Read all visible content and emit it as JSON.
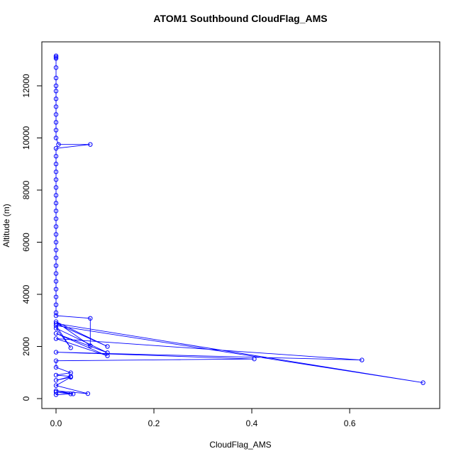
{
  "chart_data": {
    "type": "line",
    "title": "ATOM1 Southbound CloudFlag_AMS",
    "xlabel": "CloudFlag_AMS",
    "ylabel": "Altitude (m)",
    "color": "#0000ff",
    "markers": true,
    "xlim": [
      -0.029,
      0.784
    ],
    "ylim": [
      -381,
      13687
    ],
    "xticks": [
      {
        "value": 0,
        "label": "0.0"
      },
      0.2,
      0.4,
      0.6
    ],
    "yticks": [
      0,
      2000,
      4000,
      6000,
      8000,
      10000,
      12000
    ],
    "x": [
      0,
      0,
      0,
      0,
      0,
      0,
      0,
      0,
      0,
      0,
      0,
      0,
      0,
      0.005,
      0.07,
      0,
      0,
      0,
      0,
      0,
      0,
      0,
      0,
      0,
      0,
      0,
      0,
      0,
      0,
      0,
      0,
      0,
      0,
      0,
      0,
      0,
      0,
      0,
      0.07,
      0.07,
      0,
      0.105,
      0,
      0.75,
      0,
      0.03,
      0,
      0.105,
      0,
      0.105,
      0,
      0.625,
      0,
      0.405,
      0,
      0,
      0.03,
      0,
      0.03,
      0,
      0.03,
      0,
      0.065,
      0,
      0.035,
      0,
      0.03,
      0
    ],
    "values": [
      13150,
      13100,
      13050,
      12700,
      12300,
      12000,
      11800,
      11500,
      11200,
      10900,
      10600,
      10300,
      10000,
      9750,
      9750,
      9600,
      9300,
      9000,
      8700,
      8400,
      8100,
      7800,
      7500,
      7200,
      6900,
      6600,
      6300,
      6000,
      5700,
      5400,
      5100,
      4800,
      4500,
      4200,
      3900,
      3600,
      3300,
      3180,
      3080,
      2030,
      2950,
      2000,
      2880,
      610,
      2800,
      1950,
      2700,
      1760,
      2500,
      1640,
      2300,
      1480,
      1780,
      1520,
      1450,
      1200,
      990,
      900,
      850,
      700,
      820,
      500,
      190,
      300,
      180,
      250,
      180,
      150
    ]
  }
}
